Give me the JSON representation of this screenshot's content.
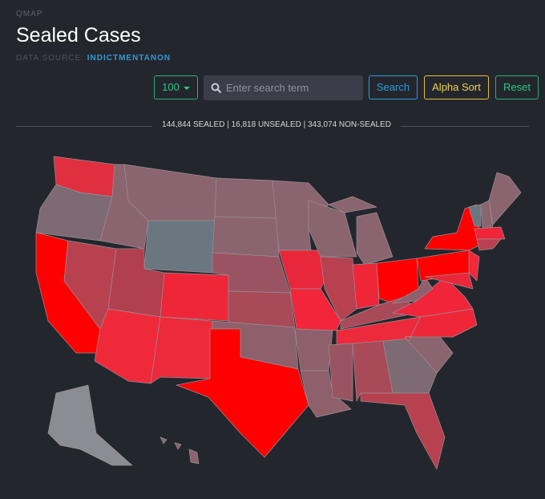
{
  "header": {
    "label": "QMAP",
    "title": "Sealed Cases",
    "source_label": "DATA SOURCE:",
    "source_link": "INDICTMENTANON"
  },
  "controls": {
    "page_size": "100",
    "search_placeholder": "Enter search term",
    "search_button": "Search",
    "sort_button": "Alpha Sort",
    "reset_button": "Reset"
  },
  "stats": "144,844 SEALED | 16,818 UNSEALED | 343,074 NON-SEALED"
}
